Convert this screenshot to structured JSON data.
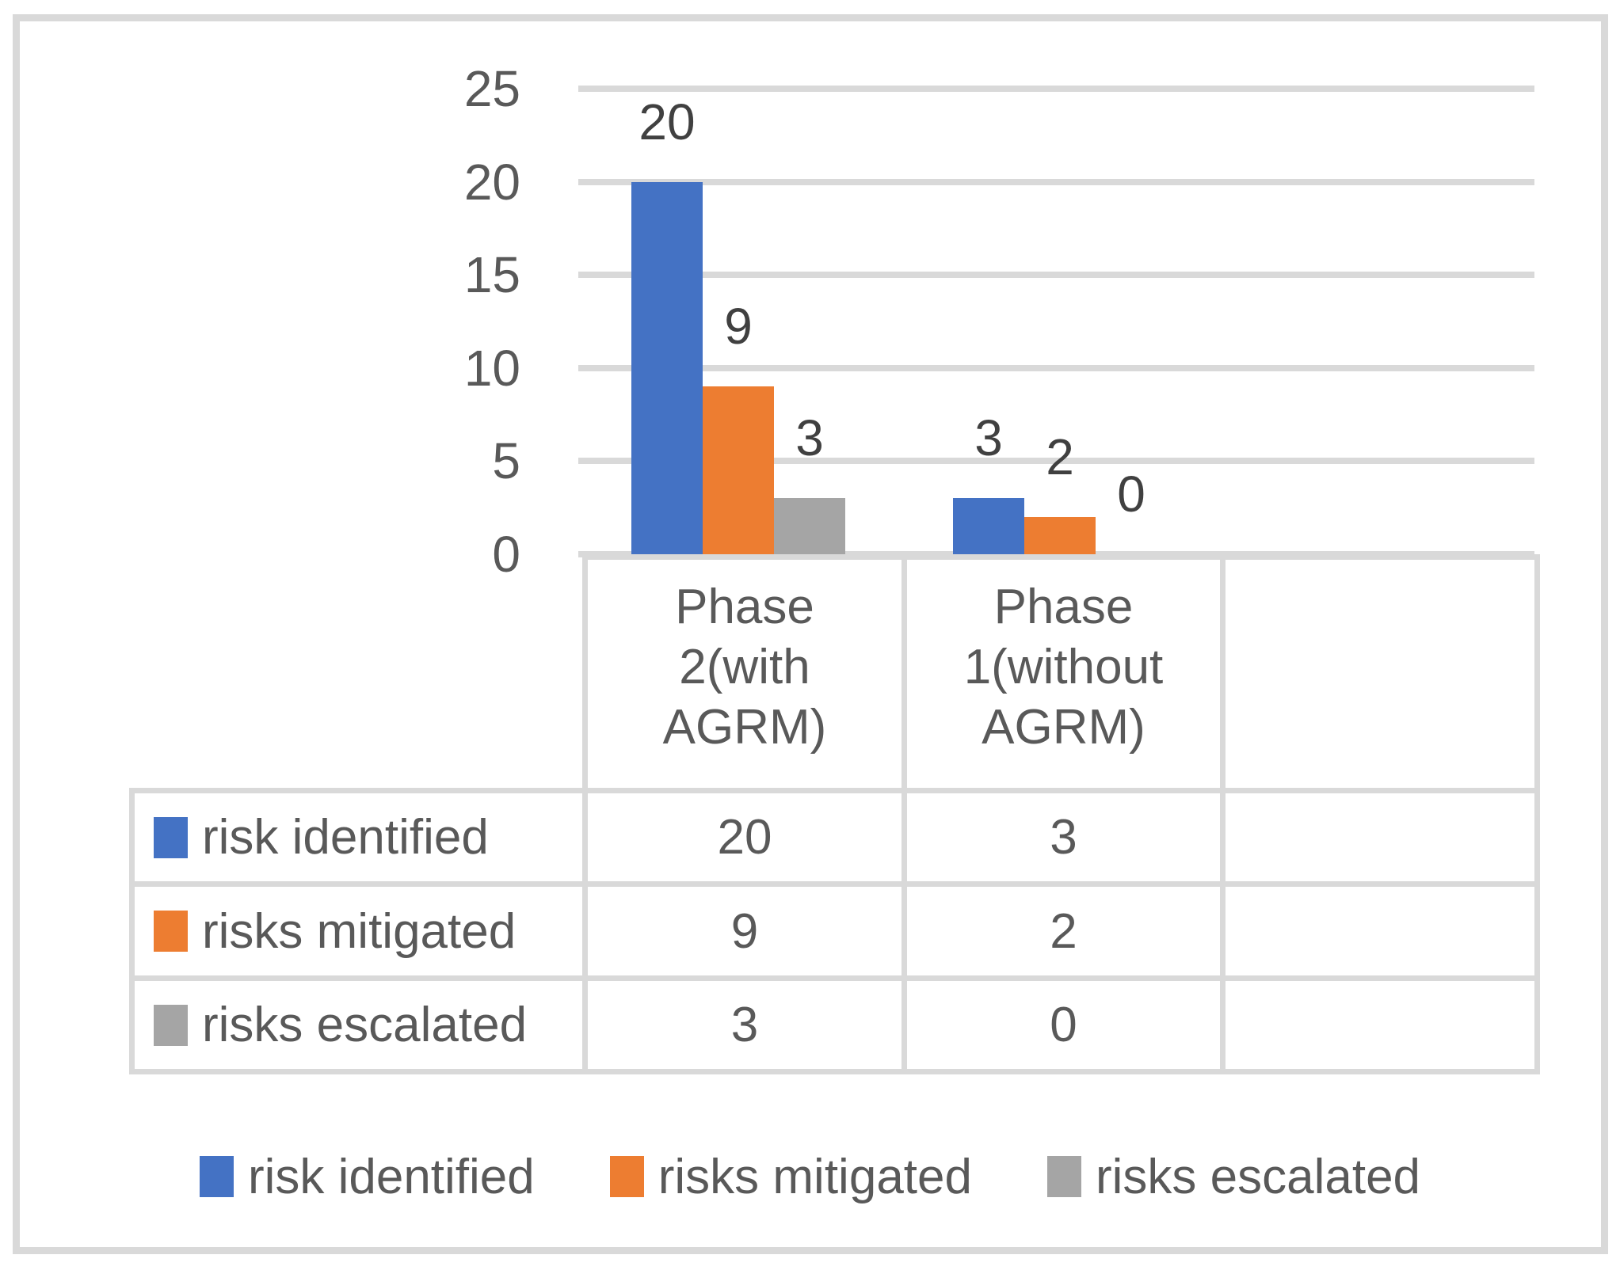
{
  "chart_data": {
    "type": "bar",
    "title": "",
    "xlabel": "",
    "ylabel": "",
    "categories": [
      "Phase 2(with AGRM)",
      "Phase 1(without AGRM)"
    ],
    "category_label_lines": [
      [
        "Phase",
        "2(with",
        "AGRM)"
      ],
      [
        "Phase",
        "1(without",
        "AGRM)"
      ]
    ],
    "series": [
      {
        "name": "risk identified",
        "color": "#4472C4",
        "values": [
          20,
          3
        ]
      },
      {
        "name": "risks mitigated",
        "color": "#ED7D31",
        "values": [
          9,
          2
        ]
      },
      {
        "name": "risks escalated",
        "color": "#A5A5A5",
        "values": [
          3,
          0
        ]
      }
    ],
    "ylim": [
      0,
      25
    ],
    "yticks": [
      0,
      5,
      10,
      15,
      20,
      25
    ],
    "grid": true,
    "data_labels_shown": true,
    "data_table_shown": true,
    "legend_position": "bottom"
  },
  "colors": {
    "gridline": "#D9D9D9",
    "table_border": "#D9D9D9",
    "frame_border": "#D9D9D9",
    "axis_text": "#595959",
    "value_text": "#404040",
    "background": "#FFFFFF"
  }
}
